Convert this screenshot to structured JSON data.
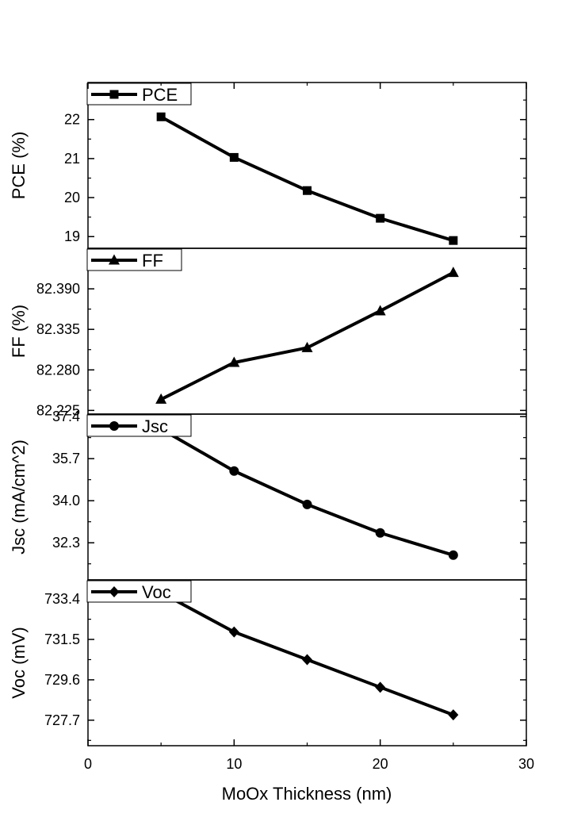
{
  "chart_data": {
    "type": "line",
    "xlabel": "MoOx Thickness (nm)",
    "xlim": [
      0,
      30
    ],
    "xticks": [
      0,
      10,
      20,
      30
    ],
    "x": [
      5,
      10,
      15,
      20,
      25
    ],
    "grid": false,
    "legend_placement": "top-left",
    "panels": [
      {
        "series_name": "PCE",
        "marker": "square",
        "ylabel": "PCE (%)",
        "ylim": [
          18.7,
          22.95
        ],
        "yticks": [
          "19",
          "20",
          "21",
          "22"
        ],
        "values": [
          22.07,
          21.03,
          20.18,
          19.47,
          18.9
        ]
      },
      {
        "series_name": "FF",
        "marker": "triangle",
        "ylabel": "FF (%)",
        "ylim": [
          82.22,
          82.445
        ],
        "yticks": [
          "82.225",
          "82.280",
          "82.335",
          "82.390"
        ],
        "values": [
          82.24,
          82.29,
          82.31,
          82.36,
          82.412
        ]
      },
      {
        "series_name": "Jsc",
        "marker": "circle",
        "ylabel": "Jsc (mA/cm^2)",
        "ylim": [
          30.8,
          37.5
        ],
        "yticks": [
          "32.3",
          "34.0",
          "35.7",
          "37.4"
        ],
        "values": [
          36.9,
          35.2,
          33.85,
          32.7,
          31.8
        ]
      },
      {
        "series_name": "Voc",
        "marker": "diamond",
        "ylabel": "Voc (mV)",
        "ylim": [
          726.5,
          734.3
        ],
        "yticks": [
          "727.7",
          "729.6",
          "731.5",
          "733.4"
        ],
        "values": [
          733.7,
          731.85,
          730.55,
          729.25,
          727.95
        ]
      }
    ]
  }
}
